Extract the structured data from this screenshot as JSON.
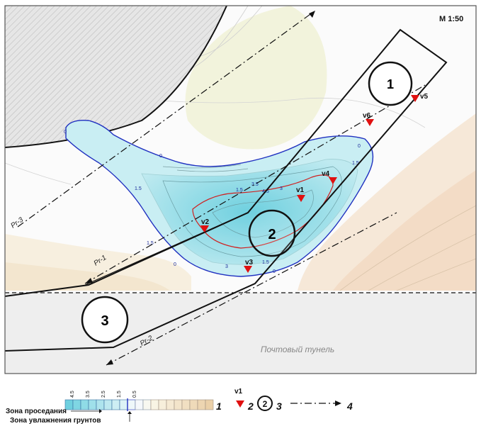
{
  "map": {
    "scale_label": "M 1:50",
    "tunnel_label": "Почтовый тунель",
    "zone_labels": [
      "1",
      "2",
      "3"
    ],
    "points": [
      {
        "id": "v1"
      },
      {
        "id": "v2"
      },
      {
        "id": "v3"
      },
      {
        "id": "v4"
      },
      {
        "id": "v5"
      },
      {
        "id": "v6"
      }
    ],
    "profiles": [
      "Pr-1",
      "Pr-2",
      "Pr-3"
    ],
    "contour_values": [
      "0",
      "0",
      "0",
      "0",
      "0",
      "1.5",
      "1.5",
      "1.5",
      "1.5",
      "1.5",
      "3",
      "3",
      "3.5",
      "4.5"
    ],
    "colors": {
      "subsidence_fill": "#bfeaf0",
      "subsidence_core": "#7fd6e3",
      "marker": "#e01010",
      "blue_contour": "#2030c0",
      "red_contour": "#d02020",
      "hatch": "#d8d8d8",
      "tunnel": "#f0f0f0"
    }
  },
  "legend": {
    "scale_ticks": [
      "4.5",
      "3.5",
      "2.5",
      "1.5",
      "0.5"
    ],
    "item_numbers": [
      "1",
      "2",
      "3",
      "4"
    ],
    "sample_point": "v1",
    "sample_zone": "2",
    "caption_subsidence": "Зона проседания",
    "caption_moistening": "Зона увлажнения грунтов"
  }
}
